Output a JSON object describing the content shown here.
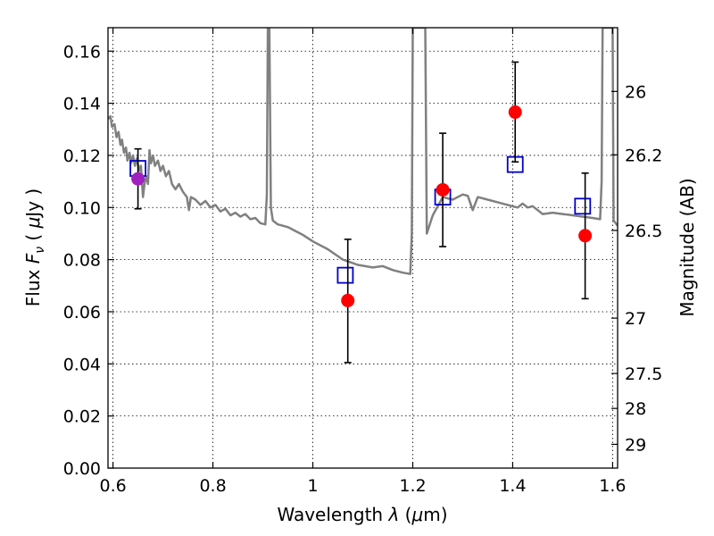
{
  "chart_data": {
    "type": "scatter",
    "xlabel_parts": [
      "Wavelength  ",
      "λ",
      " (",
      "μ",
      "m)"
    ],
    "ylabel_parts": [
      "Flux  ",
      "F",
      "ν",
      "  ( ",
      "μ",
      "Jy )"
    ],
    "ylabel_right": "Magnitude (AB)",
    "xlim": [
      0.59,
      1.61
    ],
    "ylim": [
      0.0,
      0.169
    ],
    "x_ticks": [
      {
        "value": 0.6,
        "label": "0.6"
      },
      {
        "value": 0.8,
        "label": "0.8"
      },
      {
        "value": 1.0,
        "label": "1"
      },
      {
        "value": 1.2,
        "label": "1.2"
      },
      {
        "value": 1.4,
        "label": "1.4"
      },
      {
        "value": 1.6,
        "label": "1.6"
      }
    ],
    "y_ticks": [
      {
        "value": 0.0,
        "label": "0.00"
      },
      {
        "value": 0.02,
        "label": "0.02"
      },
      {
        "value": 0.04,
        "label": "0.04"
      },
      {
        "value": 0.06,
        "label": "0.06"
      },
      {
        "value": 0.08,
        "label": "0.08"
      },
      {
        "value": 0.1,
        "label": "0.10"
      },
      {
        "value": 0.12,
        "label": "0.12"
      },
      {
        "value": 0.14,
        "label": "0.14"
      },
      {
        "value": 0.16,
        "label": "0.16"
      }
    ],
    "right_ticks": [
      {
        "mag": 26.0,
        "label": "26"
      },
      {
        "mag": 26.2,
        "label": "26.2"
      },
      {
        "mag": 26.5,
        "label": "26.5"
      },
      {
        "mag": 27.0,
        "label": "27"
      },
      {
        "mag": 27.5,
        "label": "27.5"
      },
      {
        "mag": 28.0,
        "label": "28"
      },
      {
        "mag": 29.0,
        "label": "29"
      }
    ],
    "grid": true,
    "series": [
      {
        "kind": "line",
        "color": "#808080",
        "points": [
          [
            0.59,
            0.134
          ],
          [
            0.595,
            0.135
          ],
          [
            0.598,
            0.131
          ],
          [
            0.603,
            0.132
          ],
          [
            0.607,
            0.127
          ],
          [
            0.611,
            0.129
          ],
          [
            0.615,
            0.124
          ],
          [
            0.618,
            0.126
          ],
          [
            0.622,
            0.121
          ],
          [
            0.626,
            0.123
          ],
          [
            0.629,
            0.118
          ],
          [
            0.633,
            0.121
          ],
          [
            0.636,
            0.117
          ],
          [
            0.64,
            0.12
          ],
          [
            0.644,
            0.116
          ],
          [
            0.648,
            0.119
          ],
          [
            0.652,
            0.114
          ],
          [
            0.656,
            0.116
          ],
          [
            0.66,
            0.104
          ],
          [
            0.663,
            0.109
          ],
          [
            0.667,
            0.112
          ],
          [
            0.67,
            0.109
          ],
          [
            0.673,
            0.122
          ],
          [
            0.676,
            0.117
          ],
          [
            0.68,
            0.12
          ],
          [
            0.684,
            0.116
          ],
          [
            0.69,
            0.118
          ],
          [
            0.695,
            0.114
          ],
          [
            0.7,
            0.116
          ],
          [
            0.706,
            0.112
          ],
          [
            0.712,
            0.114
          ],
          [
            0.718,
            0.109
          ],
          [
            0.725,
            0.107
          ],
          [
            0.732,
            0.109
          ],
          [
            0.74,
            0.106
          ],
          [
            0.748,
            0.104
          ],
          [
            0.752,
            0.099
          ],
          [
            0.756,
            0.104
          ],
          [
            0.765,
            0.103
          ],
          [
            0.775,
            0.101
          ],
          [
            0.785,
            0.1025
          ],
          [
            0.795,
            0.1
          ],
          [
            0.805,
            0.101
          ],
          [
            0.815,
            0.0985
          ],
          [
            0.825,
            0.0995
          ],
          [
            0.835,
            0.097
          ],
          [
            0.845,
            0.098
          ],
          [
            0.855,
            0.0965
          ],
          [
            0.865,
            0.0975
          ],
          [
            0.875,
            0.0955
          ],
          [
            0.885,
            0.096
          ],
          [
            0.895,
            0.094
          ],
          [
            0.905,
            0.0935
          ],
          [
            0.908,
            0.105
          ],
          [
            0.91,
            0.169
          ],
          [
            0.913,
            0.169
          ],
          [
            0.916,
            0.1
          ],
          [
            0.92,
            0.095
          ],
          [
            0.93,
            0.0935
          ],
          [
            0.94,
            0.093
          ],
          [
            0.95,
            0.0925
          ],
          [
            0.96,
            0.0915
          ],
          [
            0.98,
            0.0895
          ],
          [
            1.0,
            0.087
          ],
          [
            1.03,
            0.084
          ],
          [
            1.06,
            0.08
          ],
          [
            1.09,
            0.078
          ],
          [
            1.12,
            0.077
          ],
          [
            1.14,
            0.0775
          ],
          [
            1.16,
            0.076
          ],
          [
            1.18,
            0.075
          ],
          [
            1.195,
            0.0745
          ],
          [
            1.198,
            0.09
          ],
          [
            1.2,
            0.169
          ],
          [
            1.203,
            0.169
          ],
          [
            1.225,
            0.169
          ],
          [
            1.228,
            0.09
          ],
          [
            1.24,
            0.097
          ],
          [
            1.26,
            0.104
          ],
          [
            1.28,
            0.103
          ],
          [
            1.3,
            0.105
          ],
          [
            1.31,
            0.1045
          ],
          [
            1.32,
            0.099
          ],
          [
            1.33,
            0.104
          ],
          [
            1.35,
            0.103
          ],
          [
            1.37,
            0.102
          ],
          [
            1.39,
            0.101
          ],
          [
            1.41,
            0.1
          ],
          [
            1.42,
            0.1015
          ],
          [
            1.43,
            0.1
          ],
          [
            1.44,
            0.1005
          ],
          [
            1.45,
            0.099
          ],
          [
            1.46,
            0.0975
          ],
          [
            1.48,
            0.098
          ],
          [
            1.5,
            0.0975
          ],
          [
            1.52,
            0.097
          ],
          [
            1.54,
            0.0965
          ],
          [
            1.56,
            0.096
          ],
          [
            1.575,
            0.0955
          ],
          [
            1.578,
            0.11
          ],
          [
            1.58,
            0.169
          ],
          [
            1.6,
            0.169
          ],
          [
            1.602,
            0.095
          ],
          [
            1.61,
            0.093
          ]
        ]
      },
      {
        "kind": "open-squares",
        "color": "#0000cc",
        "points": [
          [
            0.65,
            0.115
          ],
          [
            1.065,
            0.074
          ],
          [
            1.26,
            0.104
          ],
          [
            1.405,
            0.1165
          ],
          [
            1.54,
            0.1005
          ]
        ]
      },
      {
        "kind": "filled-circles-with-errorbars",
        "color": "#ff0000",
        "errorbar_color": "#000000",
        "points": [
          {
            "x": 0.65,
            "y": 0.111,
            "err_low": 0.0995,
            "err_high": 0.1225,
            "color": "#a020c0"
          },
          {
            "x": 1.07,
            "y": 0.0643,
            "err_low": 0.0405,
            "err_high": 0.0878
          },
          {
            "x": 1.26,
            "y": 0.1068,
            "err_low": 0.085,
            "err_high": 0.1285
          },
          {
            "x": 1.405,
            "y": 0.1366,
            "err_low": 0.1175,
            "err_high": 0.1558
          },
          {
            "x": 1.545,
            "y": 0.0892,
            "err_low": 0.065,
            "err_high": 0.1132
          }
        ]
      }
    ]
  }
}
